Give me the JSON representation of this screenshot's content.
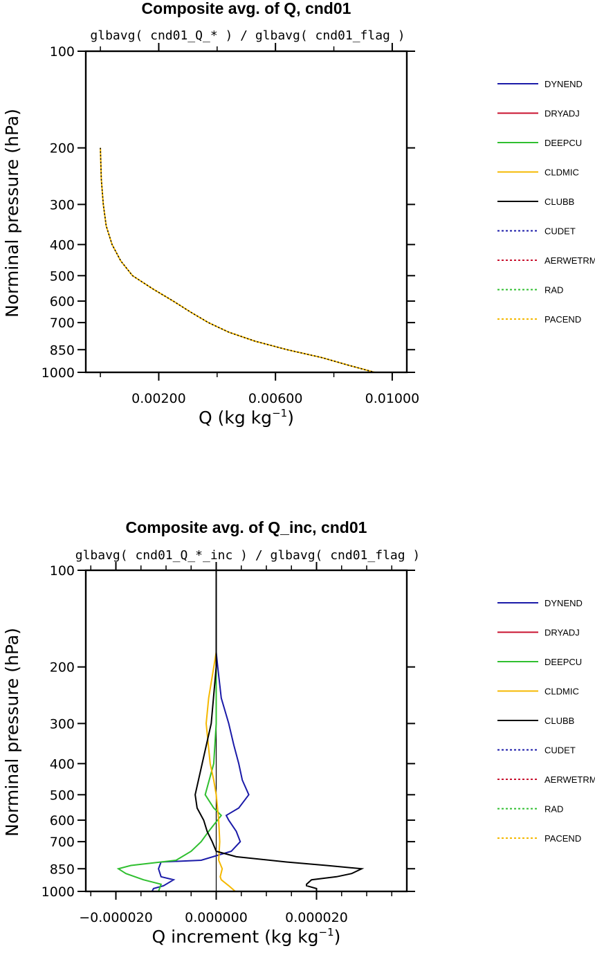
{
  "chart_data": [
    {
      "type": "line",
      "title": "Composite avg. of Q, cnd01",
      "subtitle": "glbavg( cnd01_Q_* ) / glbavg( cnd01_flag )",
      "xlabel": "Q (kg kg",
      "xlabel_sup": "−1",
      "xlabel_close": ")",
      "ylabel": "Norminal pressure (hPa)",
      "xlim": [
        -0.0005,
        0.0105
      ],
      "ylim": [
        100,
        1000
      ],
      "y_log": true,
      "x_ticks": [
        "0.00200",
        "0.00600",
        "0.01000"
      ],
      "x_tick_values": [
        0.002,
        0.006,
        0.01
      ],
      "y_ticks": [
        "100",
        "200",
        "300",
        "400",
        "500",
        "600",
        "700",
        "850",
        "1000"
      ],
      "legend_position": "right",
      "series": [
        {
          "name": "DYNEND",
          "color": "#1a1aa8",
          "dash": false,
          "points": []
        },
        {
          "name": "DRYADJ",
          "color": "#c8102e",
          "dash": false,
          "points": []
        },
        {
          "name": "DEEPCU",
          "color": "#2fbf2f",
          "dash": false,
          "points": []
        },
        {
          "name": "CLDMIC",
          "color": "#f5b800",
          "dash": false,
          "points": [
            [
              0.0,
              200
            ],
            [
              3e-05,
              250
            ],
            [
              0.0001,
              300
            ],
            [
              0.0002,
              350
            ],
            [
              0.0004,
              400
            ],
            [
              0.0007,
              450
            ],
            [
              0.0011,
              500
            ],
            [
              0.0018,
              550
            ],
            [
              0.0025,
              600
            ],
            [
              0.0031,
              650
            ],
            [
              0.0037,
              700
            ],
            [
              0.0044,
              750
            ],
            [
              0.0053,
              800
            ],
            [
              0.0064,
              850
            ],
            [
              0.0076,
              900
            ],
            [
              0.0085,
              950
            ],
            [
              0.0094,
              1000
            ]
          ]
        },
        {
          "name": "CLUBB",
          "color": "#000000",
          "dash": false,
          "points": []
        },
        {
          "name": "CUDET",
          "color": "#1a1aa8",
          "dash": true,
          "points": []
        },
        {
          "name": "AERWETRM",
          "color": "#c8102e",
          "dash": true,
          "points": []
        },
        {
          "name": "RAD",
          "color": "#2fbf2f",
          "dash": true,
          "points": []
        },
        {
          "name": "PACEND",
          "color": "#f5b800",
          "dash": true,
          "points": []
        }
      ]
    },
    {
      "type": "line",
      "title": "Composite avg. of Q_inc, cnd01",
      "subtitle": "glbavg( cnd01_Q_*_inc ) / glbavg( cnd01_flag )",
      "xlabel": "Q increment (kg kg",
      "xlabel_sup": "−1",
      "xlabel_close": ")",
      "ylabel": "Norminal pressure (hPa)",
      "xlim": [
        -2.6e-05,
        3.8e-05
      ],
      "ylim": [
        100,
        1000
      ],
      "y_log": true,
      "x_ticks": [
        "−0.000020",
        "0.000000",
        "0.000020"
      ],
      "x_tick_values": [
        -2e-05,
        0.0,
        2e-05
      ],
      "y_ticks": [
        "100",
        "200",
        "300",
        "400",
        "500",
        "600",
        "700",
        "850",
        "1000"
      ],
      "zero_line": true,
      "legend_position": "right",
      "series": [
        {
          "name": "DYNEND",
          "color": "#1a1aa8",
          "dash": false,
          "points": [
            [
              0,
              100
            ],
            [
              0,
              180
            ],
            [
              3e-07,
              200
            ],
            [
              1e-06,
              250
            ],
            [
              2.5e-06,
              300
            ],
            [
              3.5e-06,
              350
            ],
            [
              4.5e-06,
              400
            ],
            [
              5.2e-06,
              450
            ],
            [
              6.5e-06,
              500
            ],
            [
              4.5e-06,
              550
            ],
            [
              2e-06,
              580
            ],
            [
              2.5e-06,
              600
            ],
            [
              4e-06,
              650
            ],
            [
              4.8e-06,
              700
            ],
            [
              3e-06,
              750
            ],
            [
              -3e-06,
              800
            ],
            [
              -1.1e-05,
              810
            ],
            [
              -1.15e-05,
              850
            ],
            [
              -1.1e-05,
              900
            ],
            [
              -8.5e-06,
              920
            ],
            [
              -1.05e-05,
              960
            ],
            [
              -1.25e-05,
              980
            ],
            [
              -1.28e-05,
              1000
            ]
          ]
        },
        {
          "name": "DRYADJ",
          "color": "#c8102e",
          "dash": false,
          "points": []
        },
        {
          "name": "DEEPCU",
          "color": "#2fbf2f",
          "dash": false,
          "points": [
            [
              0,
              100
            ],
            [
              0,
              200
            ],
            [
              0,
              300
            ],
            [
              -5e-07,
              400
            ],
            [
              -2.2e-06,
              500
            ],
            [
              -5e-07,
              550
            ],
            [
              1e-06,
              580
            ],
            [
              -1.5e-06,
              650
            ],
            [
              -3e-06,
              700
            ],
            [
              -5e-06,
              750
            ],
            [
              -8e-06,
              800
            ],
            [
              -1.1e-05,
              810
            ],
            [
              -1.7e-05,
              830
            ],
            [
              -1.95e-05,
              850
            ],
            [
              -1.8e-05,
              880
            ],
            [
              -1.45e-05,
              920
            ],
            [
              -1.1e-05,
              950
            ],
            [
              -1.15e-05,
              1000
            ]
          ]
        },
        {
          "name": "CLDMIC",
          "color": "#f5b800",
          "dash": false,
          "points": [
            [
              0,
              100
            ],
            [
              0,
              180
            ],
            [
              -1.5e-06,
              250
            ],
            [
              -2e-06,
              300
            ],
            [
              -1.2e-06,
              400
            ],
            [
              -5e-07,
              450
            ],
            [
              0,
              500
            ],
            [
              5e-07,
              600
            ],
            [
              7e-07,
              700
            ],
            [
              5e-07,
              800
            ],
            [
              1.2e-06,
              850
            ],
            [
              8e-07,
              900
            ],
            [
              1e-06,
              920
            ],
            [
              2.5e-06,
              960
            ],
            [
              3.8e-06,
              1000
            ]
          ]
        },
        {
          "name": "CLUBB",
          "color": "#000000",
          "dash": false,
          "points": [
            [
              0,
              100
            ],
            [
              0,
              200
            ],
            [
              -1e-06,
              300
            ],
            [
              -2.8e-06,
              400
            ],
            [
              -4.2e-06,
              500
            ],
            [
              -3.8e-06,
              550
            ],
            [
              -2.5e-06,
              600
            ],
            [
              -1.8e-06,
              650
            ],
            [
              -8e-07,
              700
            ],
            [
              0,
              750
            ],
            [
              4e-06,
              780
            ],
            [
              1.4e-05,
              810
            ],
            [
              2.2e-05,
              830
            ],
            [
              2.9e-05,
              850
            ],
            [
              2.7e-05,
              880
            ],
            [
              2.4e-05,
              900
            ],
            [
              1.9e-05,
              920
            ],
            [
              1.8e-05,
              950
            ],
            [
              1.8e-05,
              960
            ],
            [
              2e-05,
              980
            ],
            [
              2e-05,
              1000
            ]
          ]
        },
        {
          "name": "CUDET",
          "color": "#1a1aa8",
          "dash": true,
          "points": []
        },
        {
          "name": "AERWETRM",
          "color": "#c8102e",
          "dash": true,
          "points": []
        },
        {
          "name": "RAD",
          "color": "#2fbf2f",
          "dash": true,
          "points": []
        },
        {
          "name": "PACEND",
          "color": "#f5b800",
          "dash": true,
          "points": []
        }
      ]
    }
  ]
}
